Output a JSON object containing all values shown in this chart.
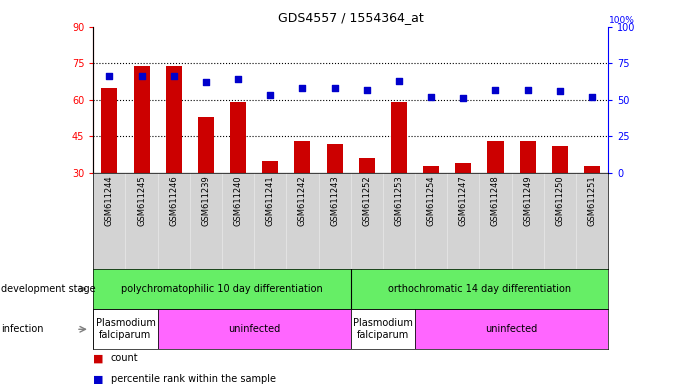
{
  "title": "GDS4557 / 1554364_at",
  "samples": [
    "GSM611244",
    "GSM611245",
    "GSM611246",
    "GSM611239",
    "GSM611240",
    "GSM611241",
    "GSM611242",
    "GSM611243",
    "GSM611252",
    "GSM611253",
    "GSM611254",
    "GSM611247",
    "GSM611248",
    "GSM611249",
    "GSM611250",
    "GSM611251"
  ],
  "counts": [
    65,
    74,
    74,
    53,
    59,
    35,
    43,
    42,
    36,
    59,
    33,
    34,
    43,
    43,
    41,
    33
  ],
  "percentiles": [
    66,
    66,
    66,
    62,
    64,
    53,
    58,
    58,
    57,
    63,
    52,
    51,
    57,
    57,
    56,
    52
  ],
  "ylim_left": [
    30,
    90
  ],
  "ylim_right": [
    0,
    100
  ],
  "yticks_left": [
    30,
    45,
    60,
    75,
    90
  ],
  "yticks_right": [
    0,
    25,
    50,
    75,
    100
  ],
  "bar_color": "#cc0000",
  "dot_color": "#0000cc",
  "gray_bg": "#d3d3d3",
  "dev_stage_color": "#66ee66",
  "infection_plasmodium_color": "#ffffff",
  "infection_uninfected_color": "#ff66ff",
  "dev_stage_groups": [
    {
      "label": "polychromatophilic 10 day differentiation",
      "start": 0,
      "end": 7
    },
    {
      "label": "orthochromatic 14 day differentiation",
      "start": 8,
      "end": 15
    }
  ],
  "infection_groups": [
    {
      "label": "Plasmodium\nfalciparum",
      "start": 0,
      "end": 1,
      "color": "#ffffff"
    },
    {
      "label": "uninfected",
      "start": 2,
      "end": 7,
      "color": "#ff66ff"
    },
    {
      "label": "Plasmodium\nfalciparum",
      "start": 8,
      "end": 9,
      "color": "#ffffff"
    },
    {
      "label": "uninfected",
      "start": 10,
      "end": 15,
      "color": "#ff66ff"
    }
  ],
  "hline_values": [
    45,
    60,
    75
  ],
  "bar_width": 0.5,
  "legend_count_label": "count",
  "legend_pct_label": "percentile rank within the sample"
}
